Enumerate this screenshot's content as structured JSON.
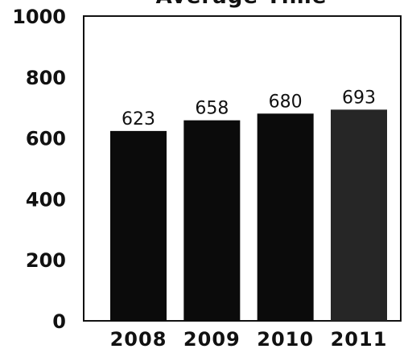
{
  "chart_data": {
    "type": "bar",
    "title": "Average Time",
    "categories": [
      "2008",
      "2009",
      "2010",
      "2011"
    ],
    "values": [
      623,
      658,
      680,
      693
    ],
    "data_labels": [
      "623",
      "658",
      "680",
      "693"
    ],
    "ylim": [
      0,
      1000
    ],
    "yticks": [
      "0",
      "200",
      "400",
      "600",
      "800",
      "1000"
    ],
    "xlabel": "",
    "ylabel": "",
    "grid": false,
    "legend": "none",
    "bar_color": "#0b0b0b",
    "highlight_bar_color": "#262626"
  }
}
